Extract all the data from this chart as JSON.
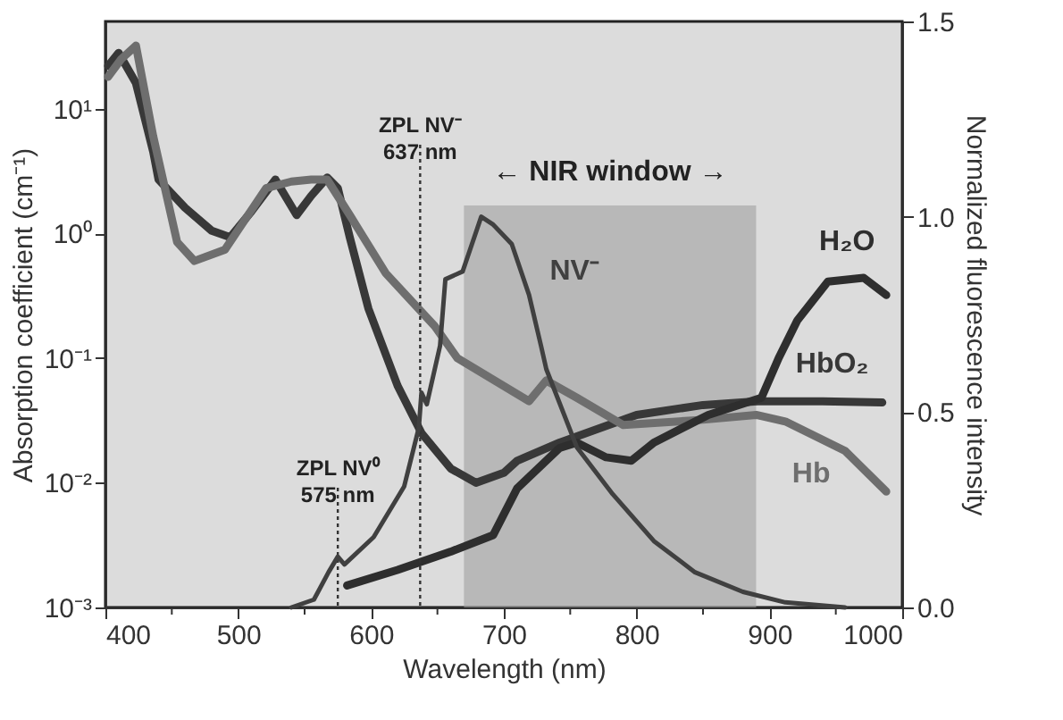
{
  "chart_data": {
    "type": "line",
    "xlabel": "Wavelength (nm)",
    "ylabel": "Absorption coefficient (cm⁻¹)",
    "y2label": "Normalized fluorescence intensity",
    "xlim": [
      400,
      1000
    ],
    "xticks": [
      400,
      {
        "value": 450,
        "label": null
      },
      500,
      {
        "value": 550,
        "label": null
      },
      600,
      {
        "value": 650,
        "label": null
      },
      700,
      {
        "value": 750,
        "label": null
      },
      800,
      {
        "value": 850,
        "label": null
      },
      900,
      {
        "value": 950,
        "label": null
      },
      1000
    ],
    "ylim": [
      0.001,
      50
    ],
    "log": "y",
    "yticks": [
      {
        "value": 0.001,
        "label": "10⁻³"
      },
      {
        "value": 0.01,
        "label": "10⁻²"
      },
      {
        "value": 0.1,
        "label": "10⁻¹"
      },
      {
        "value": 1,
        "label": "10⁰"
      },
      {
        "value": 10,
        "label": "10¹"
      }
    ],
    "y2lim": [
      0,
      1.5
    ],
    "y2ticks": [
      {
        "value": 0,
        "label": "0.0"
      },
      {
        "value": 0.5,
        "label": "0.5"
      },
      {
        "value": 1,
        "label": "1.0"
      },
      {
        "value": 1.5,
        "label": "1.5"
      }
    ],
    "grid": false,
    "legend": false,
    "series": [
      {
        "name": "HbO₂",
        "color": "#383838",
        "x": [
          402,
          410,
          423,
          436,
          440,
          460,
          480,
          494,
          510,
          528,
          544,
          555,
          567,
          575,
          584,
          598,
          620,
          638,
          660,
          679,
          700,
          710,
          742,
          800,
          850,
          891,
          940,
          985
        ],
        "values": [
          22,
          28,
          16,
          4.5,
          2.7,
          1.6,
          1.05,
          0.93,
          1.5,
          2.7,
          1.4,
          2.0,
          2.8,
          2.3,
          0.93,
          0.25,
          0.06,
          0.025,
          0.013,
          0.01,
          0.012,
          0.015,
          0.021,
          0.035,
          0.042,
          0.045,
          0.045,
          0.044
        ]
      },
      {
        "name": "Hb",
        "color": "#6e6e6e",
        "x": [
          402,
          412,
          423,
          436,
          454,
          467,
          490,
          521,
          540,
          555,
          567,
          584,
          611,
          648,
          665,
          719,
          732,
          755,
          790,
          850,
          890,
          912,
          957,
          988
        ],
        "values": [
          18,
          25,
          32,
          6,
          0.85,
          0.6,
          0.74,
          2.3,
          2.6,
          2.7,
          2.7,
          1.4,
          0.48,
          0.18,
          0.1,
          0.045,
          0.066,
          0.048,
          0.029,
          0.032,
          0.035,
          0.031,
          0.018,
          0.0085
        ]
      },
      {
        "name": "H₂O",
        "color": "#2e2e2e",
        "x": [
          582,
          620,
          660,
          692,
          710,
          742,
          755,
          777,
          796,
          813,
          854,
          894,
          907,
          921,
          944,
          971,
          988
        ],
        "values": [
          0.0015,
          0.002,
          0.0028,
          0.0038,
          0.009,
          0.019,
          0.021,
          0.016,
          0.015,
          0.021,
          0.035,
          0.048,
          0.1,
          0.2,
          0.41,
          0.44,
          0.32
        ]
      },
      {
        "name": "NV⁻",
        "color": "#404040",
        "axis": "y2",
        "x": [
          540,
          557,
          568,
          575,
          580,
          602,
          625,
          636,
          638,
          642,
          652,
          656,
          669,
          683,
          692,
          706,
          719,
          728,
          732,
          755,
          782,
          813,
          844,
          880,
          912,
          957
        ],
        "values": [
          0,
          0.02,
          0.09,
          0.13,
          0.11,
          0.18,
          0.31,
          0.46,
          0.55,
          0.52,
          0.67,
          0.84,
          0.86,
          1.0,
          0.98,
          0.93,
          0.8,
          0.67,
          0.61,
          0.41,
          0.29,
          0.17,
          0.09,
          0.04,
          0.013,
          0
        ]
      }
    ],
    "bands": [
      {
        "axis": "x",
        "from": 670,
        "to": 890,
        "label": "← NIR window →",
        "color": "#a0a0a0"
      }
    ],
    "ref_lines": [
      {
        "axis": "x",
        "value": 575,
        "label": "ZPL NV⁰\n575 nm",
        "line_style": "dotted",
        "color": "#333333"
      },
      {
        "axis": "x",
        "value": 637,
        "label": "ZPL NV⁻\n637 nm",
        "line_style": "dotted",
        "color": "#333333"
      }
    ]
  }
}
